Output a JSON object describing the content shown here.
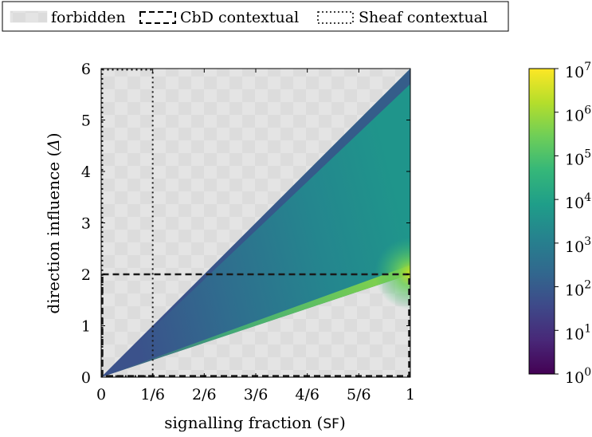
{
  "chart_data": {
    "type": "heatmap",
    "xlabel": "signalling fraction",
    "xlabel_symbol": "SF",
    "ylabel": "direction influence",
    "ylabel_symbol": "Δ",
    "xlim": [
      0,
      1
    ],
    "ylim": [
      0,
      6
    ],
    "x_ticks": [
      {
        "value": 0,
        "label": "0"
      },
      {
        "value": 0.16667,
        "label": "1/6"
      },
      {
        "value": 0.33333,
        "label": "2/6"
      },
      {
        "value": 0.5,
        "label": "3/6"
      },
      {
        "value": 0.66667,
        "label": "4/6"
      },
      {
        "value": 0.83333,
        "label": "5/6"
      },
      {
        "value": 1,
        "label": "1"
      }
    ],
    "y_ticks": [
      {
        "value": 0,
        "label": "0"
      },
      {
        "value": 1,
        "label": "1"
      },
      {
        "value": 2,
        "label": "2"
      },
      {
        "value": 3,
        "label": "3"
      },
      {
        "value": 4,
        "label": "4"
      },
      {
        "value": 5,
        "label": "5"
      },
      {
        "value": 6,
        "label": "6"
      }
    ],
    "allowed_region": {
      "description": "filled wedge between lines through the origin",
      "upper_line": {
        "x": [
          0,
          1
        ],
        "y": [
          0,
          6
        ]
      },
      "lower_line": {
        "x": [
          0,
          1
        ],
        "y": [
          0,
          2
        ]
      }
    },
    "regions": {
      "cbd_contextual": {
        "x": [
          0,
          1
        ],
        "y": [
          0,
          2
        ]
      },
      "sheaf_contextual": {
        "x": [
          0,
          0.16667
        ],
        "y": [
          0,
          6
        ]
      }
    },
    "legend": {
      "placement": "top",
      "entries": [
        {
          "label": "forbidden",
          "style": "gray-pattern"
        },
        {
          "label": "CbD contextual",
          "style": "dashed"
        },
        {
          "label": "Sheaf contextual",
          "style": "dotted"
        }
      ]
    },
    "colorbar": {
      "scale": "log",
      "range": [
        1,
        10000000
      ],
      "tick_labels": [
        "10",
        "10",
        "10",
        "10",
        "10",
        "10",
        "10",
        "10"
      ],
      "tick_exponents": [
        "0",
        "1",
        "2",
        "3",
        "4",
        "5",
        "6",
        "7"
      ],
      "colormap": [
        "#440154",
        "#482878",
        "#3e4989",
        "#31688e",
        "#26828e",
        "#1f9e89",
        "#35b779",
        "#6ece58",
        "#b5de2b",
        "#fde725"
      ]
    },
    "grid": false
  }
}
